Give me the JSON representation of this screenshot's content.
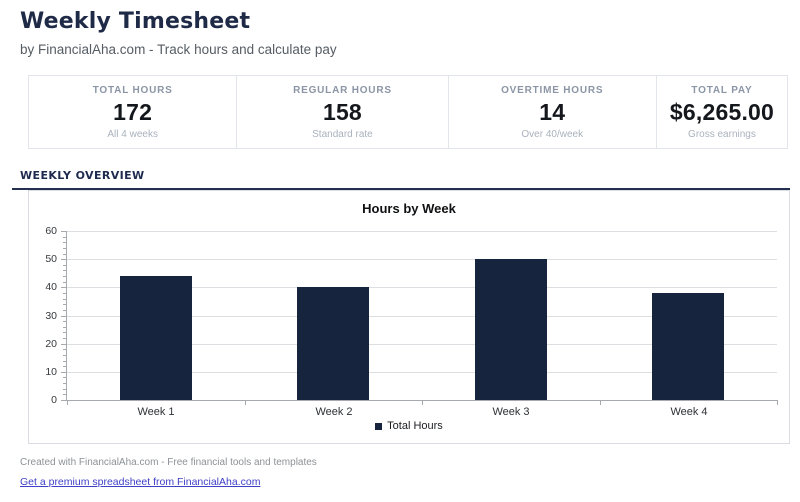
{
  "header": {
    "title": "Weekly Timesheet",
    "subtitle": "by FinancialAha.com - Track hours and calculate pay"
  },
  "stats": [
    {
      "label": "TOTAL HOURS",
      "value": "172",
      "sub": "All 4 weeks"
    },
    {
      "label": "REGULAR HOURS",
      "value": "158",
      "sub": "Standard rate"
    },
    {
      "label": "OVERTIME HOURS",
      "value": "14",
      "sub": "Over 40/week"
    },
    {
      "label": "TOTAL PAY",
      "value": "$6,265.00",
      "sub": "Gross earnings"
    }
  ],
  "section": {
    "title": "WEEKLY OVERVIEW"
  },
  "chart_data": {
    "type": "bar",
    "title": "Hours by Week",
    "categories": [
      "Week 1",
      "Week 2",
      "Week 3",
      "Week 4"
    ],
    "series": [
      {
        "name": "Total Hours",
        "values": [
          44,
          40,
          50,
          38
        ]
      }
    ],
    "xlabel": "",
    "ylabel": "",
    "ylim": [
      0,
      60
    ],
    "ytick_step": 10,
    "minor_tick_step": 2,
    "grid": true,
    "legend_position": "bottom",
    "bar_color": "#17243e"
  },
  "footer": {
    "note": "Created with FinancialAha.com - Free financial tools and templates",
    "link": "Get a premium spreadsheet from FinancialAha.com"
  },
  "colors": {
    "accent_navy": "#1f2a47",
    "rule_navy": "#24304f",
    "bar_navy": "#17243e",
    "link_blue": "#3f3fc8"
  }
}
